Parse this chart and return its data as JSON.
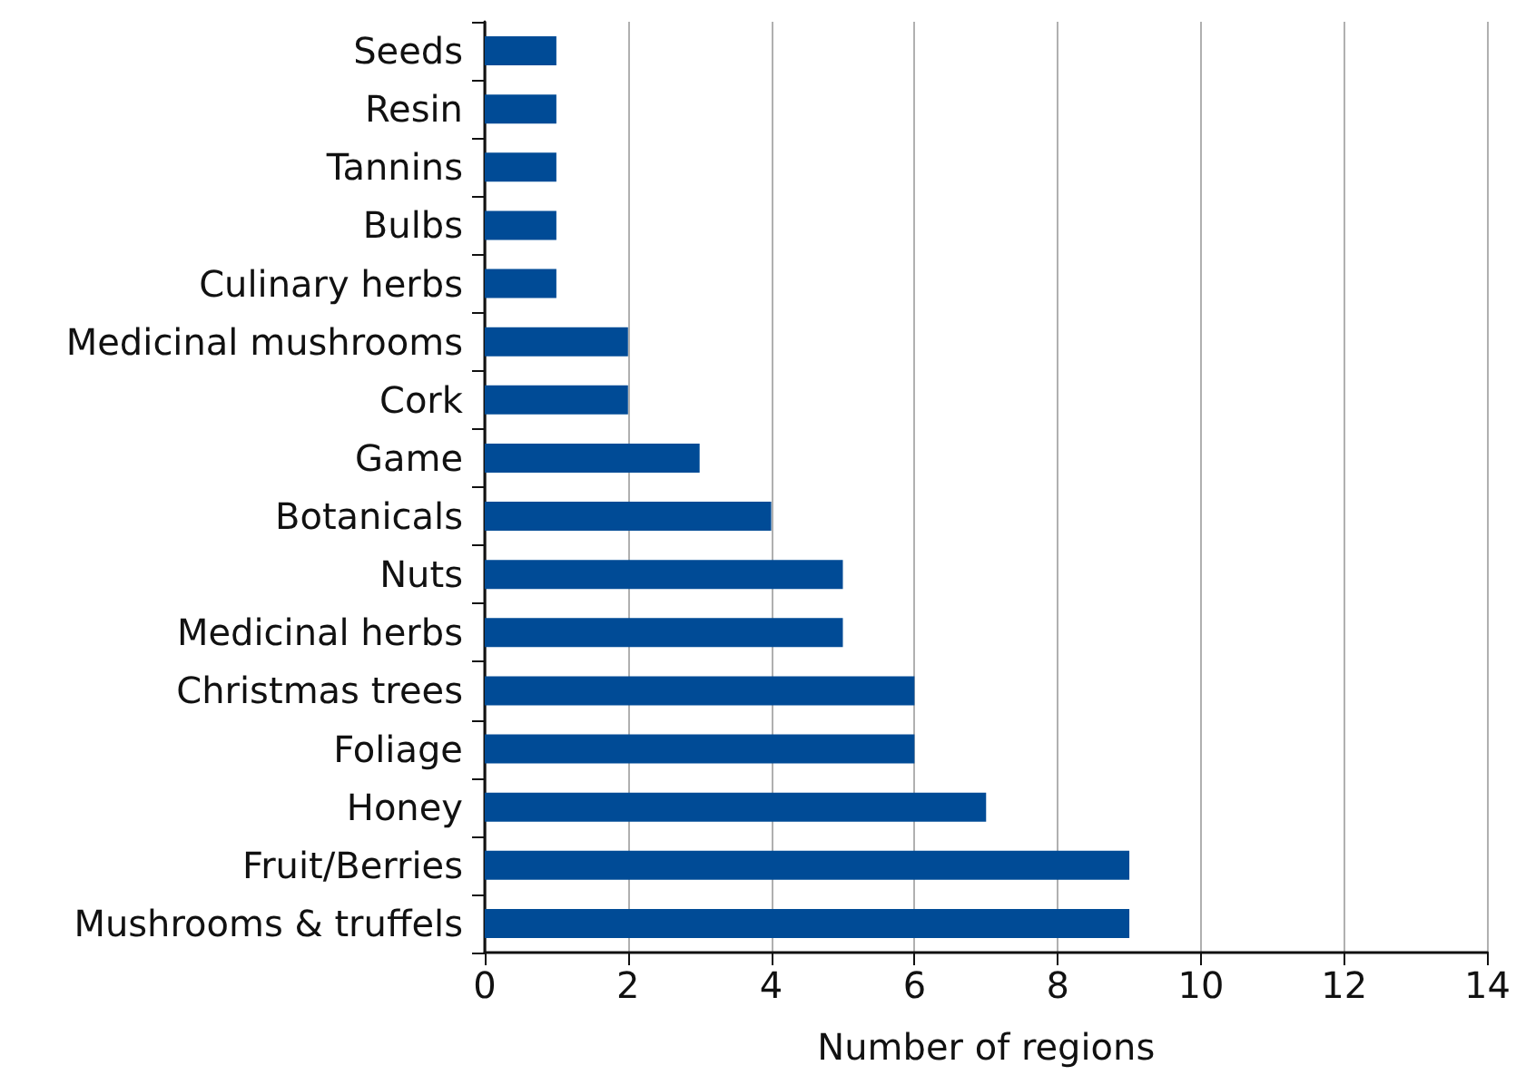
{
  "chart_data": {
    "type": "bar",
    "orientation": "horizontal",
    "xlabel": "Number of regions",
    "categories": [
      "Seeds",
      "Resin",
      "Tannins",
      "Bulbs",
      "Culinary herbs",
      "Medicinal mushrooms",
      "Cork",
      "Game",
      "Botanicals",
      "Nuts",
      "Medicinal herbs",
      "Christmas trees",
      "Foliage",
      "Honey",
      "Fruit/Berries",
      "Mushrooms & truffels"
    ],
    "values": [
      1,
      1,
      1,
      1,
      1,
      2,
      2,
      3,
      4,
      5,
      5,
      6,
      6,
      7,
      9,
      9
    ],
    "color": "#004b96",
    "xlim": [
      0,
      14
    ],
    "xticks": [
      0,
      2,
      4,
      6,
      8,
      10,
      12,
      14
    ],
    "grid": "x"
  }
}
